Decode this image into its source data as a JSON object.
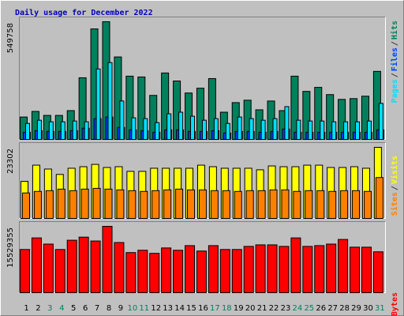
{
  "chart_data": [
    {
      "type": "bar",
      "title": "Daily usage for December 2022",
      "title_color": "#0000c0",
      "ylim": [
        0,
        549758
      ],
      "yticks": [
        549758
      ],
      "legend_separator": "/",
      "series": [
        {
          "name": "Pages",
          "color": "#00e0ff",
          "values": [
            74800,
            89800,
            82300,
            82300,
            86000,
            82300,
            329100,
            359000,
            179500,
            101000,
            97200,
            78500,
            119700,
            127200,
            108500,
            89800,
            97200,
            74800,
            104700,
            97200,
            89800,
            97200,
            153300,
            89800,
            86000,
            86000,
            82300,
            82300,
            82300,
            86000,
            168300
          ]
        },
        {
          "name": "Files",
          "color": "#0040ff",
          "values": [
            33600,
            41100,
            37400,
            37400,
            41100,
            52400,
            97200,
            104700,
            56100,
            44900,
            41100,
            33600,
            44900,
            44900,
            37400,
            37400,
            41100,
            29900,
            37400,
            37400,
            33600,
            37400,
            48600,
            33600,
            33600,
            33600,
            33600,
            33600,
            33600,
            33600,
            44900
          ]
        },
        {
          "name": "Hits",
          "color": "#00805c",
          "values": [
            104700,
            130900,
            112200,
            112200,
            134600,
            288000,
            516100,
            549758,
            385200,
            295500,
            291700,
            205700,
            310400,
            273000,
            216900,
            239400,
            284200,
            127200,
            172000,
            183300,
            138400,
            179500,
            134600,
            295500,
            224400,
            243100,
            209400,
            187000,
            190700,
            202000,
            317900
          ]
        }
      ]
    },
    {
      "type": "bar",
      "ylim": [
        0,
        23302
      ],
      "yticks": [
        23302
      ],
      "legend_separator": "/",
      "series": [
        {
          "name": "Sites",
          "color": "#ff8000",
          "values": [
            8350,
            8860,
            9110,
            9610,
            9110,
            9610,
            9860,
            9610,
            9360,
            9110,
            8860,
            9110,
            9360,
            9610,
            9360,
            9360,
            9110,
            9110,
            8860,
            9110,
            9110,
            9360,
            9360,
            8860,
            9110,
            9110,
            8860,
            9110,
            9110,
            8860,
            13410
          ]
        },
        {
          "name": "Visits",
          "color": "#ffff00",
          "values": [
            12150,
            17460,
            16190,
            14420,
            16450,
            16950,
            17710,
            16700,
            16950,
            15430,
            15430,
            16450,
            16450,
            16450,
            16450,
            17460,
            16950,
            16450,
            16450,
            16450,
            15940,
            17200,
            16950,
            16950,
            17460,
            17460,
            16700,
            16700,
            16950,
            16450,
            23302
          ]
        }
      ]
    },
    {
      "type": "bar",
      "ylim": [
        0,
        15529355
      ],
      "yticks": [
        15529355
      ],
      "categories": [
        "1",
        "2",
        "3",
        "4",
        "5",
        "6",
        "7",
        "8",
        "9",
        "10",
        "11",
        "12",
        "13",
        "14",
        "15",
        "16",
        "17",
        "18",
        "19",
        "20",
        "21",
        "22",
        "23",
        "24",
        "25",
        "26",
        "27",
        "28",
        "29",
        "30",
        "31"
      ],
      "category_colors": [
        "#000000",
        "#000000",
        "#00805c",
        "#00805c",
        "#000000",
        "#000000",
        "#000000",
        "#000000",
        "#000000",
        "#00805c",
        "#00805c",
        "#000000",
        "#000000",
        "#000000",
        "#000000",
        "#000000",
        "#00805c",
        "#00805c",
        "#000000",
        "#000000",
        "#000000",
        "#000000",
        "#000000",
        "#00805c",
        "#00805c",
        "#000000",
        "#000000",
        "#000000",
        "#000000",
        "#000000",
        "#00805c"
      ],
      "series": [
        {
          "name": "KBytes",
          "color": "#ff0000",
          "values": [
            10112000,
            12821000,
            11376000,
            10112000,
            12279000,
            13001000,
            12098000,
            15529355,
            11737000,
            9390000,
            9932000,
            9209000,
            10473000,
            9932000,
            11015000,
            9751000,
            11015000,
            10112000,
            10112000,
            10834000,
            11196000,
            11196000,
            10834000,
            12821000,
            10834000,
            11015000,
            11376000,
            12460000,
            10654000,
            10654000,
            9570000
          ]
        }
      ]
    }
  ]
}
